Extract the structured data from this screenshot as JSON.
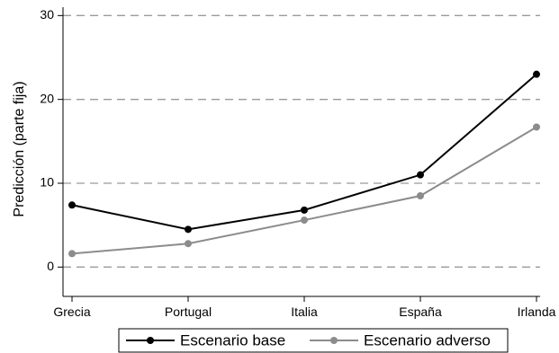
{
  "chart_data": {
    "type": "line",
    "title": "",
    "xlabel": "",
    "ylabel": "Predicción (parte fija)",
    "categories": [
      "Grecia",
      "Portugal",
      "Italia",
      "España",
      "Irlanda"
    ],
    "ylim": [
      -3.5,
      31
    ],
    "yticks": [
      0,
      10,
      20,
      30
    ],
    "grid": true,
    "legend_position": "bottom",
    "series": [
      {
        "name": "Escenario base",
        "color": "#000000",
        "values": [
          7.4,
          4.5,
          6.8,
          11.0,
          23.0
        ]
      },
      {
        "name": "Escenario adverso",
        "color": "#8c8c8c",
        "values": [
          1.6,
          2.8,
          5.6,
          8.5,
          16.7
        ]
      }
    ]
  }
}
